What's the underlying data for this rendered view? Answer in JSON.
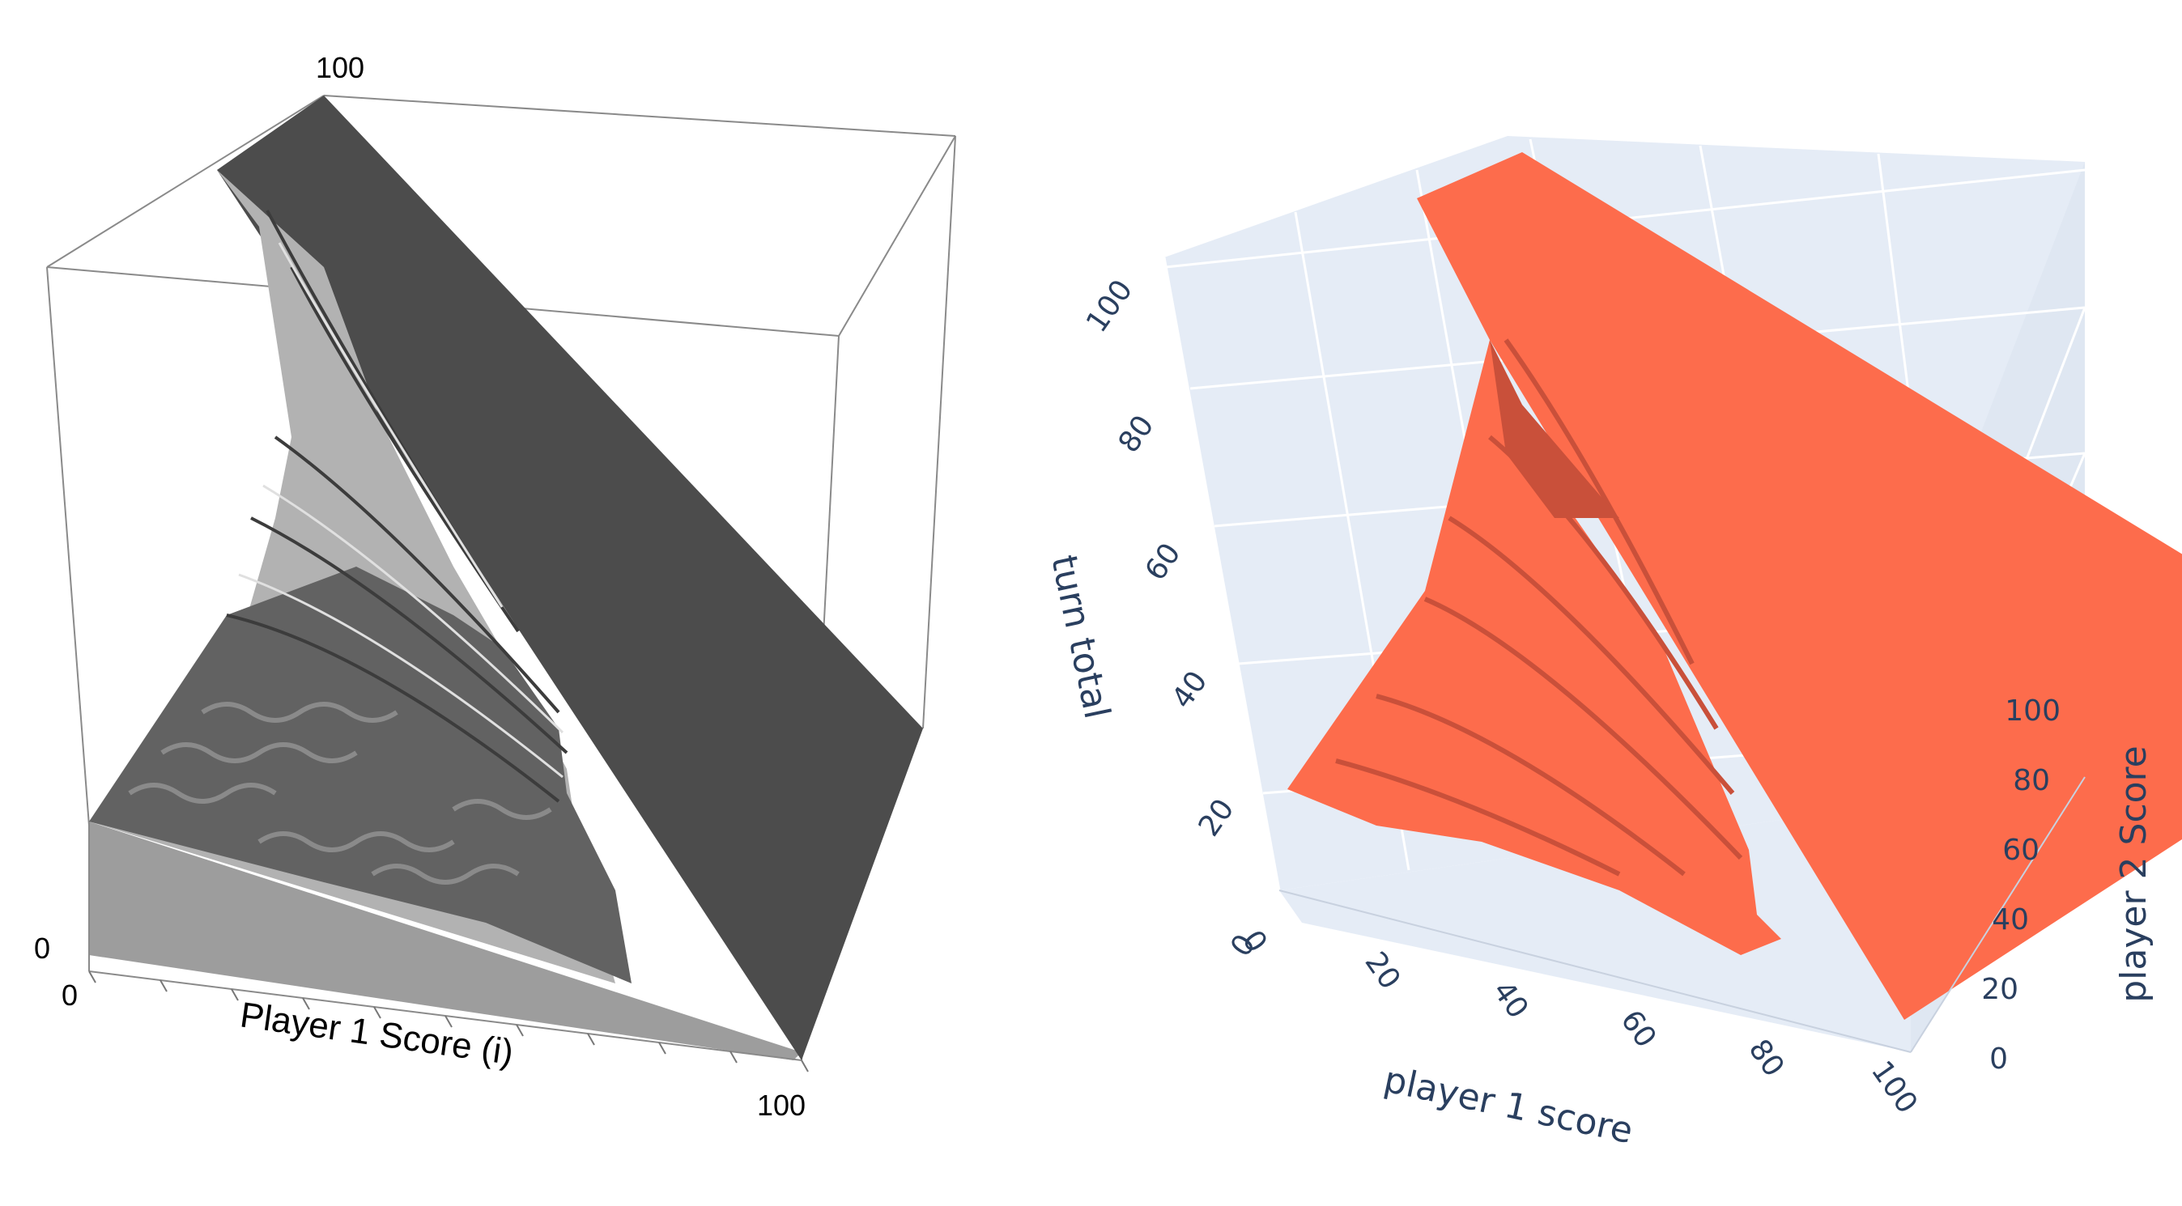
{
  "chart_data": [
    {
      "type": "surface3d",
      "renderer": "grayscale-lit",
      "x_axis": {
        "label": "Player 1 Score (i)",
        "range": [
          0,
          100
        ],
        "tick_labels": [
          "0",
          "100"
        ]
      },
      "z_axis": {
        "label": "",
        "range": [
          0,
          100
        ],
        "tick_labels": [
          "0",
          "100"
        ]
      },
      "y_axis": {
        "label": "",
        "range": [
          0,
          100
        ],
        "tick_labels": []
      },
      "box": true,
      "grid": false,
      "colors": {
        "surface_dark": "#4c4c4c",
        "surface_light": "#b2b2b2",
        "floor": "#9d9d9d",
        "box_edge": "#8a8a8a"
      }
    },
    {
      "type": "surface3d",
      "renderer": "plotly",
      "x_axis": {
        "label": "player 1 score",
        "range": [
          0,
          100
        ],
        "tick_labels": [
          "0",
          "20",
          "40",
          "60",
          "80",
          "100"
        ]
      },
      "y_axis": {
        "label": "player 2 Score",
        "range": [
          0,
          100
        ],
        "tick_labels": [
          "0",
          "20",
          "40",
          "60",
          "80",
          "100"
        ]
      },
      "z_axis": {
        "label": "turn total",
        "range": [
          0,
          100
        ],
        "tick_labels": [
          "0",
          "20",
          "40",
          "60",
          "80",
          "100"
        ]
      },
      "grid": true,
      "colors": {
        "surface": "#fd6c4c",
        "surface_shadow": "#c9503a",
        "pane": "#e5ecf6",
        "grid": "#ffffff",
        "axis_text": "#2a3f5f"
      }
    }
  ]
}
